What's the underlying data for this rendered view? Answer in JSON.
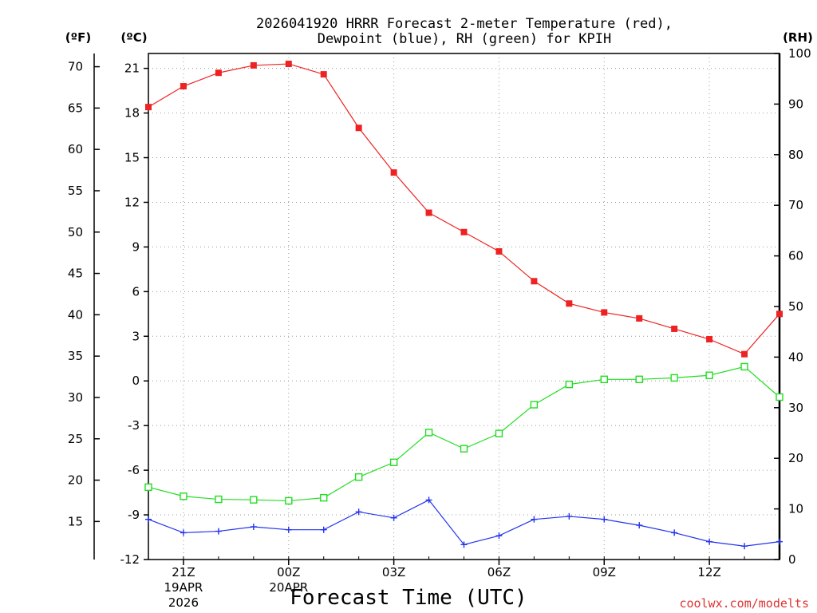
{
  "chart_data": {
    "type": "line",
    "title_line1": "2026041920 HRRR Forecast 2-meter Temperature (red),",
    "title_line2": "Dewpoint (blue), RH (green) for KPIH",
    "xlabel": "Forecast Time (UTC)",
    "credit": "coolwx.com/modelts",
    "units": {
      "fahrenheit": "(ºF)",
      "celsius": "(ºC)",
      "rh": "(RH)"
    },
    "x_hours": [
      0,
      1,
      2,
      3,
      4,
      5,
      6,
      7,
      8,
      9,
      10,
      11,
      12,
      13,
      14,
      15,
      16,
      17,
      18
    ],
    "xlim": [
      0,
      18
    ],
    "ylim_c": [
      -12,
      22
    ],
    "ylim_rh": [
      0,
      100
    ],
    "y_c_ticks": [
      "-12",
      "-9",
      "-6",
      "-3",
      "0",
      "3",
      "6",
      "9",
      "12",
      "15",
      "18",
      "21"
    ],
    "y_f_ticks": [
      "15",
      "20",
      "25",
      "30",
      "35",
      "40",
      "45",
      "50",
      "55",
      "60",
      "65",
      "70"
    ],
    "y_rh_ticks": [
      "0",
      "10",
      "20",
      "30",
      "40",
      "50",
      "60",
      "70",
      "80",
      "90",
      "100"
    ],
    "x_ticks": [
      {
        "label": "21Z",
        "date": "19APR",
        "year": "2026"
      },
      {
        "label": "00Z",
        "date": "20APR",
        "year": ""
      },
      {
        "label": "03Z",
        "date": "",
        "year": ""
      },
      {
        "label": "06Z",
        "date": "",
        "year": ""
      },
      {
        "label": "09Z",
        "date": "",
        "year": ""
      },
      {
        "label": "12Z",
        "date": "",
        "year": ""
      }
    ],
    "series": [
      {
        "name": "2-meter Temperature (ºC)",
        "color": "#ee2222",
        "marker": "filled-square",
        "values": [
          18.4,
          19.8,
          20.7,
          21.2,
          21.3,
          20.6,
          17.0,
          14.0,
          11.3,
          10.0,
          8.7,
          6.7,
          5.2,
          4.6,
          4.2,
          3.5,
          2.8,
          1.8,
          4.5
        ]
      },
      {
        "name": "Dewpoint (ºC)",
        "color": "#2233ee",
        "marker": "plus",
        "values": [
          -9.3,
          -10.2,
          -10.1,
          -9.8,
          -10.0,
          -10.0,
          -8.8,
          -9.2,
          -8.0,
          -11.0,
          -10.4,
          -9.3,
          -9.1,
          -9.3,
          -9.7,
          -10.2,
          -10.8,
          -11.1,
          -10.8
        ]
      },
      {
        "name": "RH (%)",
        "color": "#22dd22",
        "marker": "open-square",
        "values": [
          14.3,
          12.5,
          11.9,
          11.8,
          11.6,
          12.2,
          16.3,
          19.2,
          25.1,
          21.9,
          24.9,
          30.6,
          34.6,
          35.6,
          35.6,
          35.9,
          36.4,
          38.1,
          32.1
        ]
      }
    ]
  }
}
